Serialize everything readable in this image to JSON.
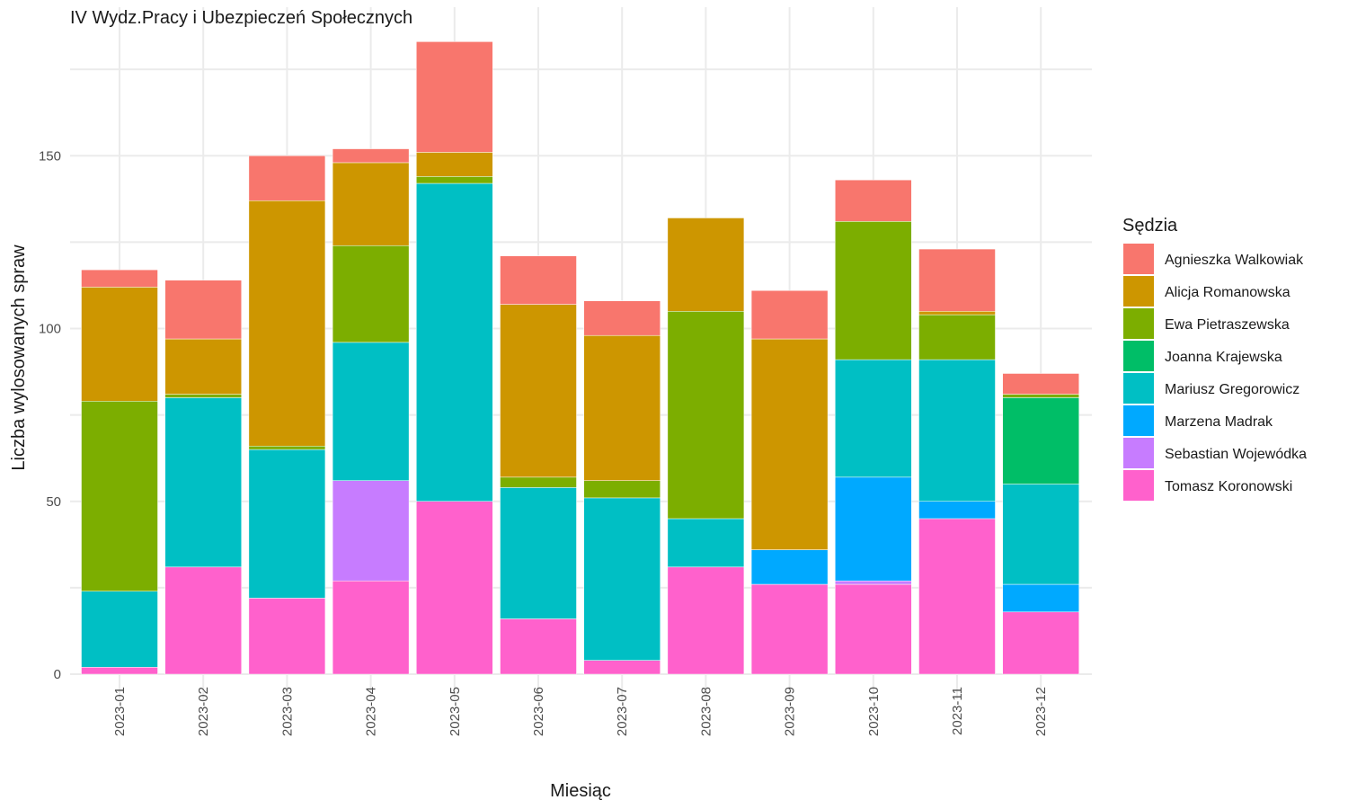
{
  "chart_data": {
    "type": "bar",
    "stacked": true,
    "title": "IV Wydz.Pracy i Ubezpieczeń Społecznych",
    "xlabel": "Miesiąc",
    "ylabel": "Liczba wylosowanych spraw",
    "ylim": [
      0,
      183
    ],
    "yticks": [
      0,
      50,
      100,
      150
    ],
    "grid": true,
    "legend_position": "right",
    "legend_title": "Sędzia",
    "categories": [
      "2023-01",
      "2023-02",
      "2023-03",
      "2023-04",
      "2023-05",
      "2023-06",
      "2023-07",
      "2023-08",
      "2023-09",
      "2023-10",
      "2023-11",
      "2023-12"
    ],
    "series": [
      {
        "name": "Agnieszka Walkowiak",
        "color": "#F8766D",
        "values": [
          5,
          17,
          13,
          4,
          32,
          14,
          10,
          0,
          14,
          12,
          18,
          6
        ]
      },
      {
        "name": "Alicja Romanowska",
        "color": "#CD9600",
        "values": [
          33,
          16,
          71,
          24,
          7,
          50,
          42,
          27,
          61,
          0,
          1,
          0
        ]
      },
      {
        "name": "Ewa Pietraszewska",
        "color": "#7CAE00",
        "values": [
          55,
          1,
          1,
          28,
          2,
          3,
          5,
          60,
          0,
          40,
          13,
          1
        ]
      },
      {
        "name": "Joanna Krajewska",
        "color": "#00BE67",
        "values": [
          0,
          0,
          0,
          0,
          0,
          0,
          0,
          0,
          0,
          0,
          0,
          25
        ]
      },
      {
        "name": "Mariusz Gregorowicz",
        "color": "#00BFC4",
        "values": [
          22,
          49,
          43,
          40,
          92,
          38,
          47,
          14,
          0,
          34,
          41,
          29
        ]
      },
      {
        "name": "Marzena Madrak",
        "color": "#00A9FF",
        "values": [
          0,
          0,
          0,
          0,
          0,
          0,
          0,
          0,
          10,
          30,
          5,
          8
        ]
      },
      {
        "name": "Sebastian Wojewódka",
        "color": "#C77CFF",
        "values": [
          0,
          0,
          0,
          29,
          0,
          0,
          0,
          0,
          0,
          1,
          0,
          0
        ]
      },
      {
        "name": "Tomasz Koronowski",
        "color": "#FF61CC",
        "values": [
          2,
          31,
          22,
          27,
          50,
          16,
          4,
          31,
          26,
          26,
          45,
          18
        ]
      }
    ]
  }
}
